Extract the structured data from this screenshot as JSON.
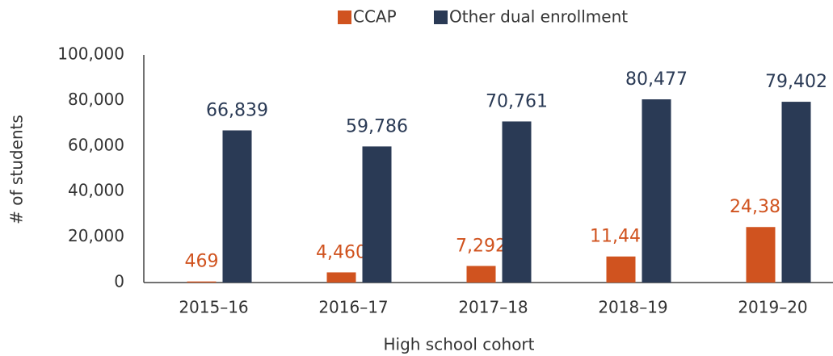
{
  "chart_data": {
    "type": "bar",
    "categories": [
      "2015–16",
      "2016–17",
      "2017–18",
      "2018–19",
      "2019–20"
    ],
    "series": [
      {
        "name": "CCAP",
        "color": "#d0531f",
        "values": [
          469,
          4460,
          7292,
          11446,
          24382
        ],
        "value_labels": [
          "469",
          "4,460",
          "7,292",
          "11,446",
          "24,382"
        ]
      },
      {
        "name": "Other dual enrollment",
        "color": "#2a3a55",
        "values": [
          66839,
          59786,
          70761,
          80477,
          79402
        ],
        "value_labels": [
          "66,839",
          "59,786",
          "70,761",
          "80,477",
          "79,402"
        ]
      }
    ],
    "xlabel": "High school cohort",
    "ylabel": "# of students",
    "ylim": [
      0,
      100000
    ],
    "yticks": [
      0,
      {
        "value": 20000,
        "label": "20,000"
      },
      {
        "value": 40000,
        "label": "40,000"
      },
      {
        "value": 60000,
        "label": "60,000"
      },
      {
        "value": 80000,
        "label": "80,000"
      },
      {
        "value": 100000,
        "label": "100,000"
      }
    ],
    "legend": "top",
    "grid": false
  }
}
